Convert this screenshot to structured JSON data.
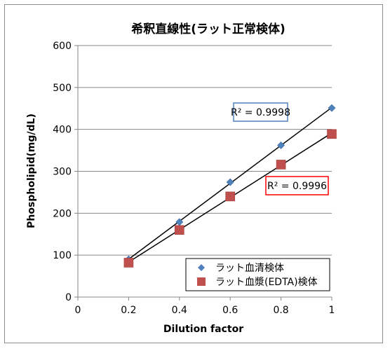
{
  "chart_data": {
    "type": "scatter",
    "title": "希釈直線性(ラット正常検体)",
    "xlabel": "Dilution factor",
    "ylabel": "Phospholipid(mg/dL)",
    "xlim": [
      0,
      1
    ],
    "ylim": [
      0,
      600
    ],
    "x_ticks": [
      "0",
      "0.2",
      "0.4",
      "0.6",
      "0.8",
      "1"
    ],
    "y_ticks": [
      "0",
      "100",
      "200",
      "300",
      "400",
      "500",
      "600"
    ],
    "grid": "horizontal",
    "legend_position": "bottom-right",
    "series": [
      {
        "name": "ラット血清検体",
        "marker": "diamond",
        "color": "#4F81BD",
        "x": [
          0.2,
          0.4,
          0.6,
          0.8,
          1.0
        ],
        "y": [
          90,
          179,
          274,
          362,
          451
        ],
        "trendline": "linear",
        "r2_label": "R² = 0.9998",
        "r2_box_color": "#4F81BD"
      },
      {
        "name": "ラット血漿(EDTA)検体",
        "marker": "square",
        "color": "#C0504D",
        "x": [
          0.2,
          0.4,
          0.6,
          0.8,
          1.0
        ],
        "y": [
          82,
          160,
          240,
          316,
          389
        ],
        "trendline": "linear",
        "r2_label": "R² = 0.9996",
        "r2_box_color": "#FF0000"
      }
    ]
  }
}
